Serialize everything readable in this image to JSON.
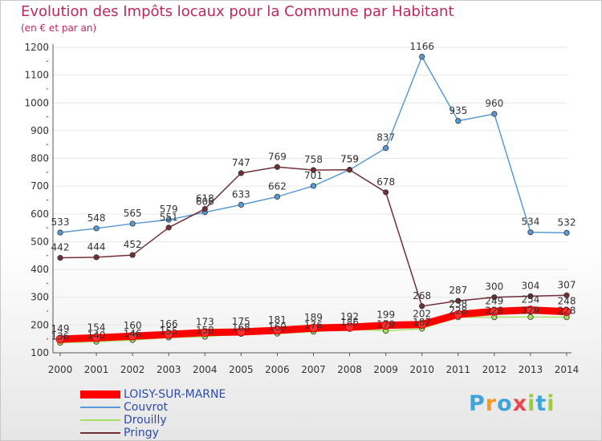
{
  "chart_data": {
    "type": "line",
    "title": "Evolution des Impôts locaux pour la Commune par Habitant",
    "subtitle": "(en € et par an)",
    "xlabel": "",
    "ylabel": "",
    "ylim": [
      100,
      1200
    ],
    "yticks": [
      "100",
      "200",
      "300",
      "400",
      "500",
      "600",
      "700",
      "800",
      "900",
      "1000",
      "1100",
      "1200"
    ],
    "categories": [
      "2000",
      "2001",
      "2002",
      "2003",
      "2004",
      "2005",
      "2006",
      "2007",
      "2008",
      "2009",
      "2010",
      "2011",
      "2012",
      "2013",
      "2014"
    ],
    "legend_position": "bottom-left",
    "series": [
      {
        "name": "LOISY-SUR-MARNE",
        "color": "#ff0000",
        "values": [
          149,
          154,
          160,
          166,
          173,
          175,
          181,
          189,
          192,
          199,
          202,
          238,
          249,
          254,
          248
        ],
        "labels": [
          "149",
          "154",
          "160",
          "166",
          "173",
          "175",
          "181",
          "189",
          "192",
          "199",
          "202",
          "238",
          "249",
          "254",
          "248"
        ]
      },
      {
        "name": "Couvrot",
        "color": "#5b9bd5",
        "values": [
          533,
          548,
          565,
          579,
          606,
          633,
          662,
          701,
          759,
          837,
          1166,
          935,
          960,
          534,
          532
        ],
        "labels": [
          "533",
          "548",
          "565",
          "579",
          "606",
          "633",
          "662",
          "701",
          "759",
          "837",
          "1166",
          "935",
          "960",
          "534",
          "532"
        ]
      },
      {
        "name": "Drouilly",
        "color": "#a8e05f",
        "values": [
          136,
          140,
          146,
          155,
          158,
          168,
          169,
          176,
          186,
          179,
          187,
          228,
          228,
          229,
          228
        ],
        "labels": [
          "136",
          "140",
          "146",
          "155",
          "158",
          "168",
          "169",
          "176",
          "186",
          "179",
          "187",
          "228",
          "228",
          "229",
          "228"
        ]
      },
      {
        "name": "Pringy",
        "color": "#722f37",
        "values": [
          442,
          444,
          452,
          551,
          618,
          747,
          769,
          758,
          759,
          678,
          268,
          287,
          300,
          304,
          307
        ],
        "labels": [
          "442",
          "444",
          "452",
          "551",
          "618",
          "747",
          "769",
          "758",
          "759",
          "678",
          "268",
          "287",
          "300",
          "304",
          "307"
        ]
      }
    ]
  },
  "brand": {
    "text": "Proxiti",
    "letters": [
      "P",
      "r",
      "o",
      "x",
      "i",
      "t",
      "i"
    ],
    "colors": [
      "#3da5d9",
      "#f59b1f",
      "#3da5d9",
      "#e8484a",
      "#9bcc3b",
      "#3da5d9",
      "#9bcc3b"
    ]
  }
}
